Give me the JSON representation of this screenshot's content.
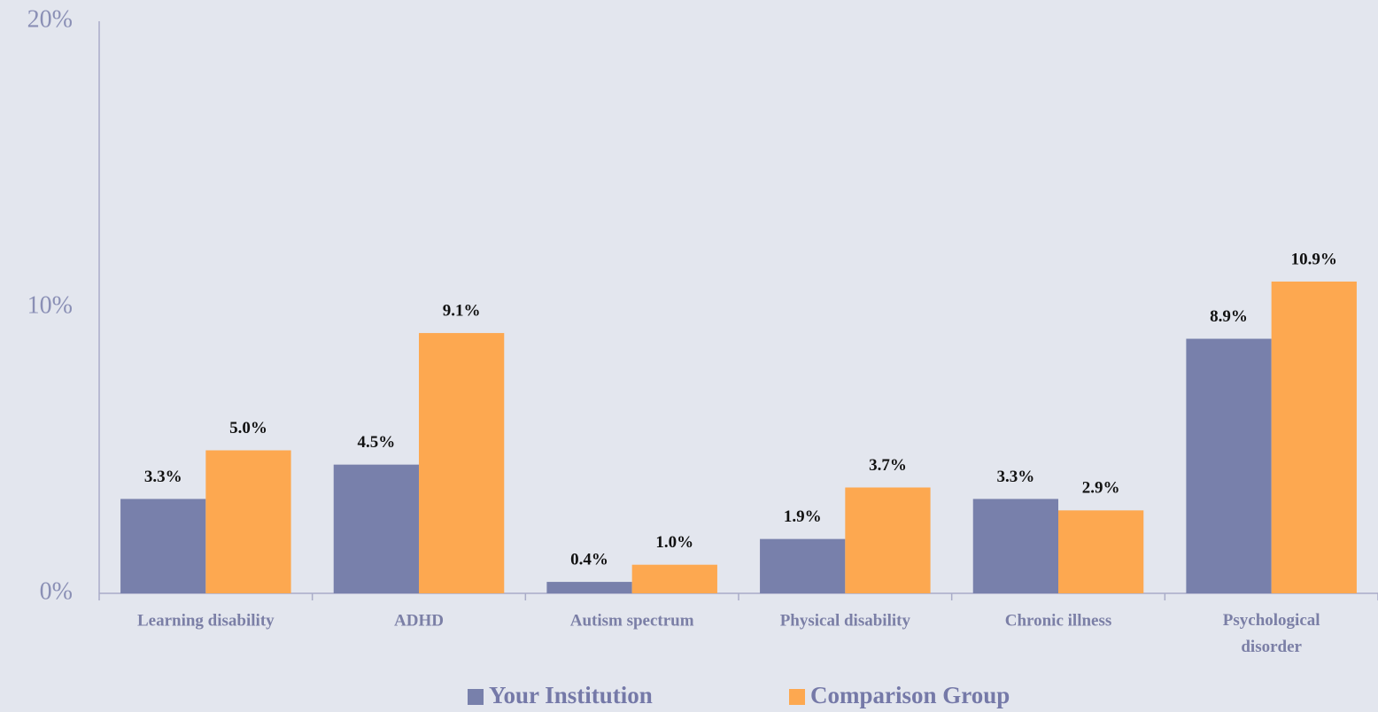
{
  "chart_data": {
    "type": "bar",
    "categories": [
      "Learning disability",
      "ADHD",
      "Autism spectrum",
      "Physical disability",
      "Chronic illness",
      "Psychological disorder"
    ],
    "series": [
      {
        "name": "Your Institution",
        "color": "#7880ab",
        "values": [
          3.3,
          4.5,
          0.4,
          1.9,
          3.3,
          8.9
        ],
        "value_labels": [
          "3.3%",
          "4.5%",
          "0.4%",
          "1.9%",
          "3.3%",
          "8.9%"
        ]
      },
      {
        "name": "Comparison Group",
        "color": "#fda850",
        "values": [
          5.0,
          9.1,
          1.0,
          3.7,
          2.9,
          10.9
        ],
        "value_labels": [
          "5.0%",
          "9.1%",
          "1.0%",
          "3.7%",
          "2.9%",
          "10.9%"
        ]
      }
    ],
    "ylim": [
      0,
      20
    ],
    "yticks": [
      {
        "value": 0,
        "label": "0%"
      },
      {
        "value": 10,
        "label": "10%"
      },
      {
        "value": 20,
        "label": "20%"
      }
    ],
    "grid": false
  }
}
